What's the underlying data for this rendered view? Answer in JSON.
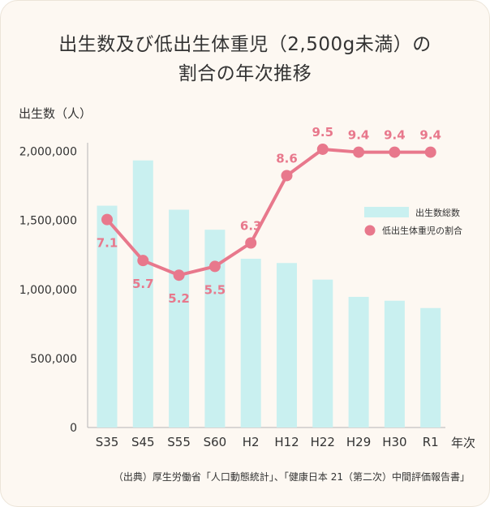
{
  "chart_data": {
    "type": "bar",
    "title_line1": "出生数及び低出生体重児（2,500g未満）の",
    "title_line2": "割合の年次推移",
    "ylabel": "出生数（人）",
    "xlabel": "年次",
    "categories": [
      "S35",
      "S45",
      "S55",
      "S60",
      "H2",
      "H12",
      "H22",
      "H29",
      "H30",
      "R1"
    ],
    "ylim": [
      0,
      2000000
    ],
    "yticks": [
      "0",
      "500,000",
      "1,000,000",
      "1,500,000",
      "2,000,000"
    ],
    "ytick_values": [
      0,
      500000,
      1000000,
      1500000,
      2000000
    ],
    "grid": false,
    "legend_position": "right",
    "series": [
      {
        "name": "出生数総数",
        "type": "bar",
        "color": "#c9f0f0",
        "values": [
          1606000,
          1934000,
          1577000,
          1432000,
          1222000,
          1191000,
          1071000,
          946000,
          918000,
          865000
        ]
      },
      {
        "name": "低出生体重児の割合",
        "type": "line",
        "color": "#e8788c",
        "values": [
          7.1,
          5.7,
          5.2,
          5.5,
          6.3,
          8.6,
          9.5,
          9.4,
          9.4,
          9.4
        ],
        "labels": [
          "7.1",
          "5.7",
          "5.2",
          "5.5",
          "6.3",
          "8.6",
          "9.5",
          "9.4",
          "9.4",
          "9.4"
        ]
      }
    ],
    "source": "（出典）厚生労働省「人口動態統計」、「健康日本 21（第二次）中間評価報告書」"
  }
}
